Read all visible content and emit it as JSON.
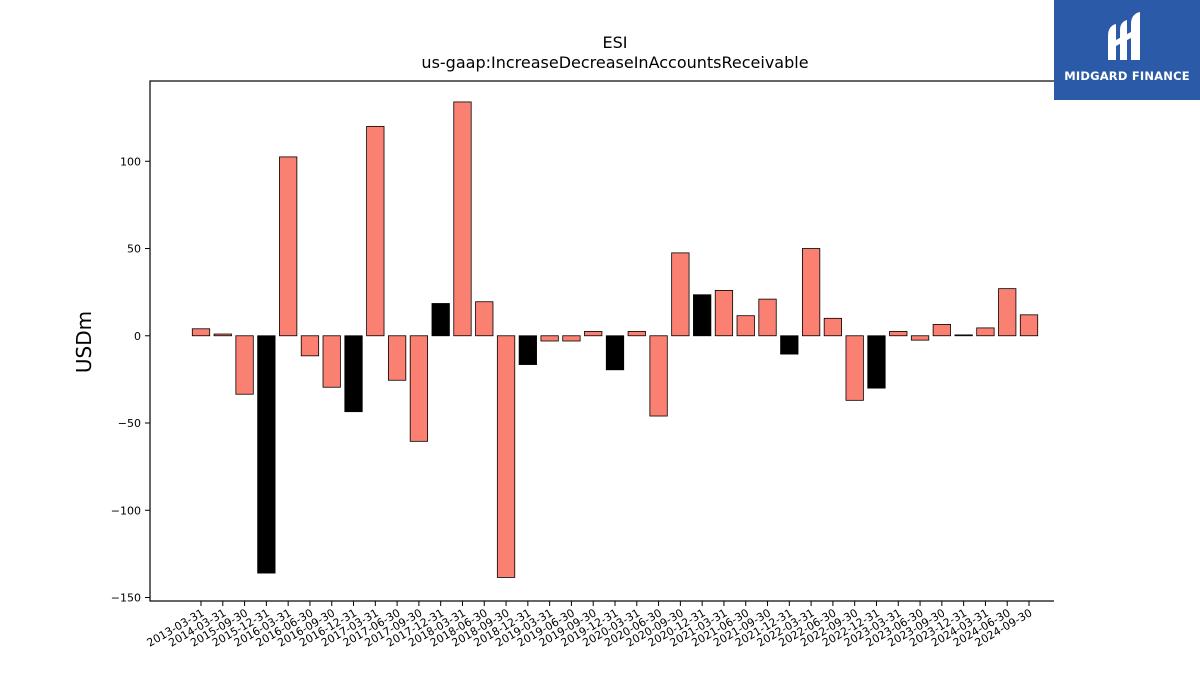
{
  "brand": {
    "name": "MIDGARD FINANCE",
    "logo_icon": "midgard-logo-icon",
    "background": "#2b5aa8"
  },
  "chart_data": {
    "type": "bar",
    "title": "ESI",
    "subtitle": "us-gaap:IncreaseDecreaseInAccountsReceivable",
    "xlabel": "",
    "ylabel": "USDm",
    "ylim": [
      -152,
      146
    ],
    "yticks": [
      -150,
      -100,
      -50,
      0,
      50,
      100
    ],
    "ytick_labels": [
      "−150",
      "−100",
      "−50",
      "0",
      "50",
      "100"
    ],
    "grid": false,
    "legend": false,
    "colors": {
      "default": "#fa8072",
      "highlight": "#000000",
      "edge": "#000000"
    },
    "categories": [
      "2013-03-31",
      "2014-03-31",
      "2015-09-30",
      "2015-12-31",
      "2016-03-31",
      "2016-06-30",
      "2016-09-30",
      "2016-12-31",
      "2017-03-31",
      "2017-06-30",
      "2017-09-30",
      "2017-12-31",
      "2018-03-31",
      "2018-06-30",
      "2018-09-30",
      "2018-12-31",
      "2019-03-31",
      "2019-06-30",
      "2019-09-30",
      "2019-12-31",
      "2020-03-31",
      "2020-06-30",
      "2020-09-30",
      "2020-12-31",
      "2021-03-31",
      "2021-06-30",
      "2021-09-30",
      "2021-12-31",
      "2022-03-31",
      "2022-06-30",
      "2022-09-30",
      "2022-12-31",
      "2023-03-31",
      "2023-06-30",
      "2023-09-30",
      "2023-12-31",
      "2024-03-31",
      "2024-06-30",
      "2024-09-30"
    ],
    "values": [
      4,
      1,
      -33.5,
      -136,
      102.5,
      -11.5,
      -29.5,
      -43.5,
      120,
      -25.5,
      -60.5,
      18.5,
      134,
      19.5,
      -138.5,
      -16.5,
      -3,
      -3,
      2.5,
      -19.5,
      2.5,
      -46,
      47.5,
      23.5,
      26,
      11.5,
      21,
      -10.5,
      50,
      10,
      -37,
      -30,
      2.5,
      -2.5,
      6.5,
      0.5,
      4.5,
      27,
      12
    ],
    "highlight": [
      false,
      false,
      false,
      true,
      false,
      false,
      false,
      true,
      false,
      false,
      false,
      true,
      false,
      false,
      false,
      true,
      false,
      false,
      false,
      true,
      false,
      false,
      false,
      true,
      false,
      false,
      false,
      true,
      false,
      false,
      false,
      true,
      false,
      false,
      false,
      false,
      false,
      false,
      false
    ]
  }
}
